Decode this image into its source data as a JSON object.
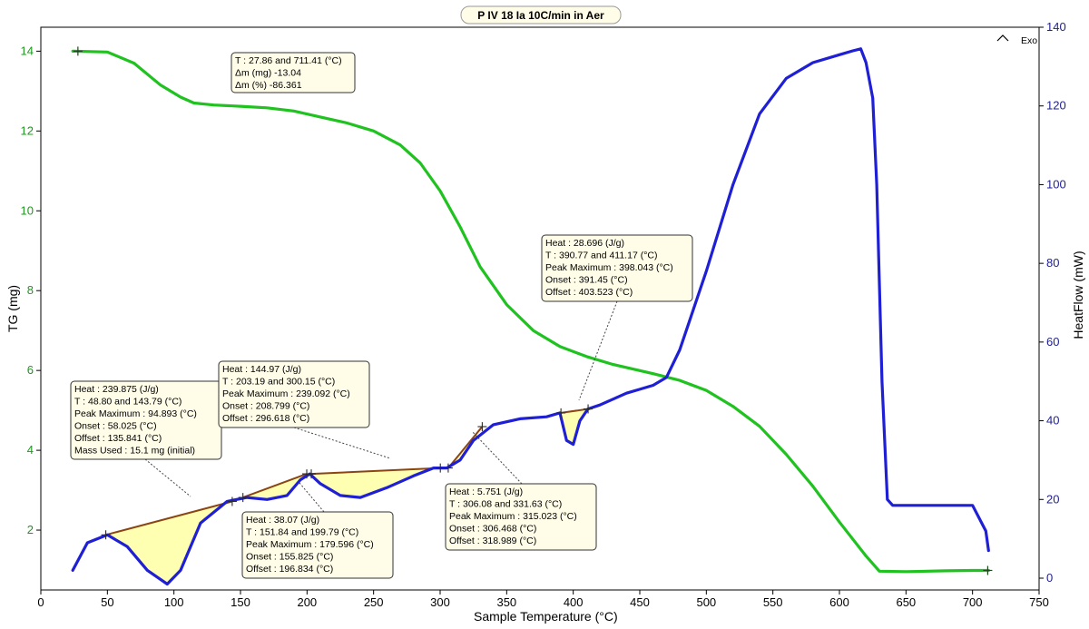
{
  "chart_data": {
    "type": "line",
    "title": "P IV 18 Ia 10C/min in Aer",
    "exo_label": "Exo",
    "exo_icon": "caret-up-icon",
    "xlabel": "Sample Temperature (°C)",
    "ylabel_left": "TG (mg)",
    "ylabel_right": "HeatFlow (mW)",
    "xlim": [
      0,
      750
    ],
    "ylim_left": [
      0.5,
      14.6
    ],
    "ylim_right": [
      -3,
      140
    ],
    "x_ticks": [
      0,
      50,
      100,
      150,
      200,
      250,
      300,
      350,
      400,
      450,
      500,
      550,
      600,
      650,
      700,
      750
    ],
    "y_ticks_left": [
      2,
      4,
      6,
      8,
      10,
      12,
      14
    ],
    "y_ticks_right": [
      0,
      20,
      40,
      60,
      80,
      100,
      120,
      140
    ],
    "colors": {
      "tg": "#1fc21f",
      "heatflow": "#1f1fd6",
      "fill": "#ffffa8",
      "baseline": "#8b4513",
      "tg_axis": "#1a9a1a",
      "hf_axis": "#1f1f8f"
    },
    "series": [
      {
        "name": "TG",
        "axis": "left",
        "x": [
          24,
          50,
          70,
          90,
          105,
          115,
          130,
          150,
          170,
          190,
          210,
          230,
          250,
          270,
          285,
          300,
          315,
          330,
          350,
          370,
          390,
          410,
          430,
          460,
          480,
          500,
          520,
          540,
          560,
          580,
          600,
          620,
          630,
          650,
          680,
          700,
          712
        ],
        "y": [
          14.0,
          13.98,
          13.7,
          13.15,
          12.85,
          12.7,
          12.65,
          12.62,
          12.58,
          12.5,
          12.35,
          12.2,
          12.0,
          11.65,
          11.2,
          10.5,
          9.6,
          8.6,
          7.65,
          7.0,
          6.6,
          6.35,
          6.15,
          5.92,
          5.75,
          5.5,
          5.1,
          4.6,
          3.9,
          3.1,
          2.2,
          1.35,
          0.97,
          0.96,
          0.98,
          0.99,
          0.99
        ]
      },
      {
        "name": "HeatFlow",
        "axis": "right",
        "x": [
          24,
          35,
          50,
          65,
          80,
          95,
          105,
          120,
          140,
          155,
          170,
          185,
          195,
          202,
          210,
          225,
          240,
          260,
          280,
          295,
          305,
          315,
          325,
          340,
          360,
          380,
          390,
          395,
          400,
          405,
          411,
          420,
          430,
          440,
          450,
          460,
          470,
          480,
          500,
          520,
          540,
          560,
          580,
          600,
          610,
          616,
          620,
          625,
          628,
          632,
          636,
          640,
          660,
          680,
          700,
          710,
          712
        ],
        "y": [
          2,
          9,
          11,
          8,
          2,
          -1.5,
          2,
          14,
          19.5,
          20.5,
          20,
          21,
          25,
          26.5,
          24,
          21,
          20.5,
          23,
          26,
          28,
          28,
          30,
          35,
          39,
          40.5,
          41,
          42,
          35,
          34,
          40,
          43,
          44,
          45.5,
          47,
          48,
          49,
          51,
          58,
          78,
          100,
          118,
          127,
          131,
          133,
          134,
          134.5,
          131,
          122,
          100,
          50,
          20,
          18.5,
          18.5,
          18.5,
          18.5,
          12,
          7
        ]
      }
    ],
    "peaks": [
      {
        "start": [
          48.8,
          11
        ],
        "end": [
          143.79,
          19.5
        ],
        "curve": [
          [
            48.8,
            11
          ],
          [
            65,
            8
          ],
          [
            80,
            2
          ],
          [
            95,
            -1.5
          ],
          [
            105,
            2
          ],
          [
            120,
            14
          ],
          [
            143.79,
            19.5
          ]
        ]
      },
      {
        "start": [
          151.84,
          20.5
        ],
        "end": [
          199.79,
          26.5
        ],
        "curve": [
          [
            151.84,
            20.5
          ],
          [
            170,
            20
          ],
          [
            185,
            21
          ],
          [
            199.79,
            26.5
          ]
        ]
      },
      {
        "start": [
          203.19,
          26.5
        ],
        "end": [
          300.15,
          28
        ],
        "curve": [
          [
            203.19,
            26.5
          ],
          [
            210,
            24
          ],
          [
            225,
            21
          ],
          [
            240,
            20.5
          ],
          [
            260,
            23
          ],
          [
            280,
            26
          ],
          [
            300.15,
            28
          ]
        ]
      },
      {
        "start": [
          306.08,
          28
        ],
        "end": [
          331.63,
          38.5
        ],
        "curve": [
          [
            306.08,
            28
          ],
          [
            315,
            30
          ],
          [
            325,
            35
          ],
          [
            331.63,
            38.5
          ]
        ]
      },
      {
        "start": [
          390.77,
          42
        ],
        "end": [
          411.17,
          43
        ],
        "curve": [
          [
            390.77,
            42
          ],
          [
            395,
            35
          ],
          [
            400,
            34
          ],
          [
            405,
            40
          ],
          [
            411.17,
            43
          ]
        ]
      }
    ],
    "tg_marks": [
      [
        27.86,
        14.0
      ],
      [
        711.41,
        0.99
      ]
    ],
    "annotations": [
      {
        "lines": [
          "T : 27.86 and 711.41 (°C)",
          "Δm (mg) -13.04",
          "Δm (%) -86.361"
        ]
      },
      {
        "lines": [
          "Heat : 239.875 (J/g)",
          "T : 48.80 and 143.79 (°C)",
          "Peak Maximum : 94.893 (°C)",
          "Onset : 58.025 (°C)",
          "Offset : 135.841 (°C)",
          "Mass Used : 15.1 mg (initial)"
        ]
      },
      {
        "lines": [
          "Heat : 144.97 (J/g)",
          "T : 203.19 and 300.15 (°C)",
          "Peak Maximum : 239.092 (°C)",
          "Onset : 208.799 (°C)",
          "Offset : 296.618 (°C)"
        ]
      },
      {
        "lines": [
          "Heat : 38.07 (J/g)",
          "T : 151.84 and 199.79 (°C)",
          "Peak Maximum : 179.596 (°C)",
          "Onset : 155.825 (°C)",
          "Offset : 196.834 (°C)"
        ]
      },
      {
        "lines": [
          "Heat : 5.751 (J/g)",
          "T : 306.08 and 331.63 (°C)",
          "Peak Maximum : 315.023 (°C)",
          "Onset : 306.468 (°C)",
          "Offset : 318.989 (°C)"
        ]
      },
      {
        "lines": [
          "Heat : 28.696 (J/g)",
          "T : 390.77 and 411.17 (°C)",
          "Peak Maximum : 398.043 (°C)",
          "Onset : 391.45 (°C)",
          "Offset : 403.523 (°C)"
        ]
      }
    ]
  }
}
